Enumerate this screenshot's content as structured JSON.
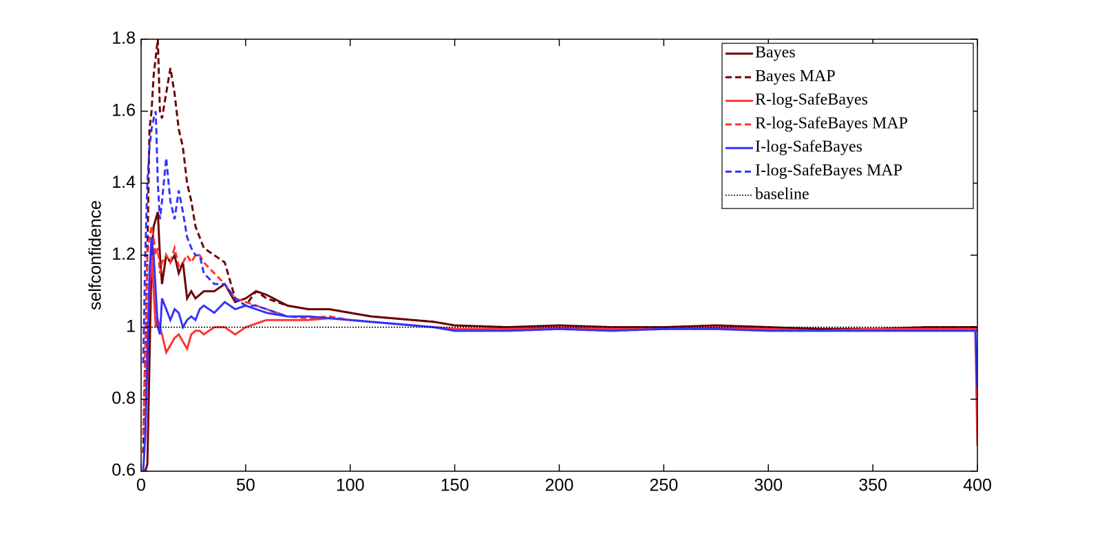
{
  "chart_data": {
    "type": "line",
    "ylabel": "selfconfidence",
    "x": [
      1,
      2,
      3,
      4,
      5,
      6,
      7,
      8,
      9,
      10,
      12,
      14,
      16,
      18,
      20,
      22,
      24,
      26,
      28,
      30,
      35,
      40,
      45,
      50,
      55,
      60,
      70,
      80,
      90,
      100,
      110,
      120,
      130,
      140,
      150,
      175,
      200,
      225,
      250,
      275,
      300,
      325,
      350,
      375,
      399,
      400
    ],
    "xlim": [
      0,
      400
    ],
    "xticks": [
      0,
      50,
      100,
      150,
      200,
      250,
      300,
      350,
      400
    ],
    "ylim": [
      0.6,
      1.8
    ],
    "yticks": [
      0.6,
      0.8,
      1,
      1.2,
      1.4,
      1.6,
      1.8
    ],
    "legend": "northeast",
    "series": [
      {
        "name": "Bayes",
        "color": "#6b0000",
        "style": "solid",
        "values": [
          0.6,
          0.6,
          0.62,
          0.9,
          1.2,
          1.28,
          1.3,
          1.32,
          1.2,
          1.12,
          1.2,
          1.18,
          1.2,
          1.15,
          1.18,
          1.08,
          1.1,
          1.08,
          1.09,
          1.1,
          1.1,
          1.12,
          1.07,
          1.08,
          1.1,
          1.09,
          1.06,
          1.05,
          1.05,
          1.04,
          1.03,
          1.025,
          1.02,
          1.015,
          1.005,
          1.0,
          1.005,
          1.0,
          1.0,
          1.005,
          1.0,
          0.995,
          0.995,
          1.0,
          1.0,
          1.0
        ]
      },
      {
        "name": "Bayes MAP",
        "color": "#6b0000",
        "style": "dashed",
        "values": [
          0.65,
          0.9,
          1.2,
          1.55,
          1.6,
          1.7,
          1.75,
          1.8,
          1.6,
          1.58,
          1.65,
          1.72,
          1.65,
          1.55,
          1.5,
          1.4,
          1.35,
          1.28,
          1.25,
          1.22,
          1.2,
          1.18,
          1.08,
          1.06,
          1.1,
          1.08,
          1.06,
          1.05,
          1.05,
          1.04,
          1.03,
          1.025,
          1.02,
          1.015,
          1.005,
          1.0,
          1.005,
          1.0,
          1.0,
          1.005,
          1.0,
          0.995,
          0.995,
          1.0,
          1.0,
          1.0
        ]
      },
      {
        "name": "R-log-SafeBayes",
        "color": "#ff3333",
        "style": "solid",
        "values": [
          0.6,
          0.7,
          0.95,
          1.1,
          1.2,
          1.1,
          1.0,
          1.02,
          1.0,
          0.98,
          0.93,
          0.95,
          0.97,
          0.98,
          0.96,
          0.94,
          0.98,
          0.99,
          0.99,
          0.98,
          1.0,
          1.0,
          0.98,
          1.0,
          1.01,
          1.02,
          1.02,
          1.02,
          1.025,
          1.02,
          1.015,
          1.01,
          1.005,
          1.0,
          0.995,
          0.995,
          1.0,
          0.995,
          0.995,
          1.0,
          0.995,
          0.99,
          0.995,
          0.995,
          0.995,
          0.67
        ]
      },
      {
        "name": "R-log-SafeBayes MAP",
        "color": "#ff3333",
        "style": "dashed",
        "values": [
          0.7,
          0.95,
          1.2,
          1.25,
          1.28,
          1.25,
          1.2,
          1.22,
          1.15,
          1.18,
          1.2,
          1.18,
          1.22,
          1.17,
          1.18,
          1.2,
          1.18,
          1.2,
          1.2,
          1.18,
          1.15,
          1.12,
          1.08,
          1.07,
          1.06,
          1.05,
          1.03,
          1.025,
          1.03,
          1.02,
          1.015,
          1.01,
          1.005,
          1.0,
          0.995,
          0.995,
          1.0,
          0.995,
          0.995,
          1.0,
          0.995,
          0.99,
          0.995,
          0.995,
          0.995,
          0.995
        ]
      },
      {
        "name": "I-log-SafeBayes",
        "color": "#3333ff",
        "style": "solid",
        "values": [
          0.6,
          0.7,
          0.9,
          1.15,
          1.25,
          1.2,
          1.1,
          1.0,
          0.98,
          1.08,
          1.05,
          1.02,
          1.05,
          1.04,
          1.0,
          1.02,
          1.03,
          1.02,
          1.05,
          1.06,
          1.04,
          1.07,
          1.05,
          1.06,
          1.05,
          1.04,
          1.03,
          1.03,
          1.025,
          1.02,
          1.015,
          1.01,
          1.005,
          1.0,
          0.99,
          0.99,
          0.995,
          0.99,
          0.995,
          0.995,
          0.99,
          0.99,
          0.99,
          0.99,
          0.99,
          0.83
        ]
      },
      {
        "name": "I-log-SafeBayes MAP",
        "color": "#3333ff",
        "style": "dashed",
        "values": [
          0.9,
          1.2,
          1.4,
          1.5,
          1.55,
          1.58,
          1.6,
          1.4,
          1.3,
          1.35,
          1.47,
          1.35,
          1.3,
          1.38,
          1.32,
          1.25,
          1.22,
          1.2,
          1.2,
          1.15,
          1.12,
          1.12,
          1.08,
          1.06,
          1.06,
          1.05,
          1.03,
          1.03,
          1.025,
          1.02,
          1.015,
          1.01,
          1.005,
          1.0,
          0.99,
          0.99,
          0.995,
          0.99,
          0.995,
          0.995,
          0.99,
          0.99,
          0.99,
          0.99,
          0.99,
          0.99
        ]
      },
      {
        "name": "baseline",
        "color": "#000000",
        "style": "dotted",
        "values": [
          1,
          1,
          1,
          1,
          1,
          1,
          1,
          1,
          1,
          1,
          1,
          1,
          1,
          1,
          1,
          1,
          1,
          1,
          1,
          1,
          1,
          1,
          1,
          1,
          1,
          1,
          1,
          1,
          1,
          1,
          1,
          1,
          1,
          1,
          1,
          1,
          1,
          1,
          1,
          1,
          1,
          1,
          1,
          1,
          1,
          1
        ]
      }
    ]
  }
}
